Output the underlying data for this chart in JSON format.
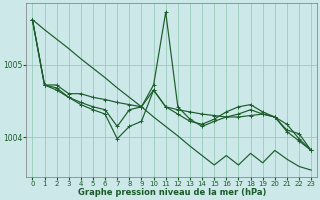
{
  "xlabel": "Graphe pression niveau de la mer (hPa)",
  "background_color": "#cde8e8",
  "grid_color": "#99ccbb",
  "line_color": "#1a5c2a",
  "xlim": [
    -0.5,
    23.5
  ],
  "ylim": [
    1003.45,
    1005.85
  ],
  "yticks": [
    1004,
    1005
  ],
  "xticks": [
    0,
    1,
    2,
    3,
    4,
    5,
    6,
    7,
    8,
    9,
    10,
    11,
    12,
    13,
    14,
    15,
    16,
    17,
    18,
    19,
    20,
    21,
    22,
    23
  ],
  "line_straight": [
    1005.62,
    1005.48,
    1005.35,
    1005.22,
    1005.08,
    1004.95,
    1004.82,
    1004.68,
    1004.55,
    1004.42,
    1004.28,
    1004.15,
    1004.02,
    1003.88,
    1003.75,
    1003.62,
    1003.75,
    1003.62,
    1003.78,
    1003.65,
    1003.82,
    1003.7,
    1003.6,
    1003.55
  ],
  "line_flat": [
    1005.62,
    1004.72,
    1004.72,
    1004.6,
    1004.6,
    1004.55,
    1004.52,
    1004.48,
    1004.45,
    1004.42,
    1004.65,
    1004.42,
    1004.38,
    1004.35,
    1004.32,
    1004.3,
    1004.28,
    1004.28,
    1004.3,
    1004.32,
    1004.28,
    1004.1,
    1004.05,
    1003.82
  ],
  "line_jagged_x": [
    0,
    1,
    2,
    3,
    4,
    5,
    6,
    7,
    8,
    9,
    10,
    11,
    12,
    13,
    14,
    15,
    16,
    17,
    18,
    19,
    20,
    21,
    22,
    23
  ],
  "line_jagged": [
    1005.62,
    1004.72,
    1004.68,
    1004.55,
    1004.48,
    1004.42,
    1004.38,
    1004.15,
    1004.38,
    1004.42,
    1004.72,
    1005.72,
    1004.42,
    1004.25,
    1004.15,
    1004.22,
    1004.28,
    1004.32,
    1004.38,
    1004.32,
    1004.28,
    1004.18,
    1003.98,
    1003.82
  ],
  "line_drop_x": [
    0,
    1,
    2,
    3,
    4,
    5,
    6,
    7,
    8,
    9,
    10,
    11,
    12,
    13,
    14,
    15,
    16,
    17,
    18,
    19,
    20,
    21,
    22,
    23
  ],
  "line_drop": [
    1005.62,
    1004.72,
    1004.65,
    1004.55,
    1004.45,
    1004.38,
    1004.32,
    1003.98,
    1004.15,
    1004.22,
    1004.65,
    1004.42,
    1004.32,
    1004.22,
    1004.18,
    1004.25,
    1004.35,
    1004.42,
    1004.45,
    1004.35,
    1004.28,
    1004.08,
    1003.95,
    1003.82
  ]
}
